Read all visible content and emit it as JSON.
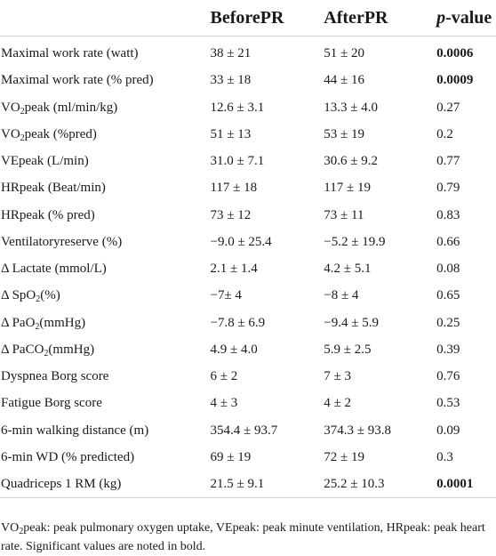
{
  "table": {
    "headers": {
      "variable": "",
      "before": "BeforePR",
      "after": "AfterPR",
      "p_italic": "p",
      "p_rest": "-value"
    },
    "rows": [
      {
        "pre": "Maximal work rate (watt)",
        "before": "38 ± 21",
        "after": "51 ± 20",
        "p": "0.0006",
        "bold": true
      },
      {
        "pre": "Maximal work rate (% pred)",
        "before": "33 ± 18",
        "after": "44 ± 16",
        "p": "0.0009",
        "bold": true
      },
      {
        "pre": "VO",
        "sub": "2",
        "post": "peak (ml/min/kg)",
        "before": "12.6 ± 3.1",
        "after": "13.3 ± 4.0",
        "p": "0.27",
        "bold": false
      },
      {
        "pre": "VO",
        "sub": "2",
        "post": "peak (%pred)",
        "before": "51 ± 13",
        "after": "53 ± 19",
        "p": "0.2",
        "bold": false
      },
      {
        "pre": "VEpeak (L/min)",
        "before": "31.0 ± 7.1",
        "after": "30.6 ± 9.2",
        "p": "0.77",
        "bold": false
      },
      {
        "pre": "HRpeak (Beat/min)",
        "before": "117 ± 18",
        "after": "117 ± 19",
        "p": "0.79",
        "bold": false
      },
      {
        "pre": "HRpeak (% pred)",
        "before": "73 ± 12",
        "after": "73 ± 11",
        "p": "0.83",
        "bold": false
      },
      {
        "pre": "Ventilatoryreserve (%)",
        "before": "−9.0 ± 25.4",
        "after": "−5.2 ± 19.9",
        "p": "0.66",
        "bold": false
      },
      {
        "pre": "Δ Lactate (mmol/L)",
        "before": "2.1 ± 1.4",
        "after": "4.2 ± 5.1",
        "p": "0.08",
        "bold": false
      },
      {
        "pre": "Δ SpO",
        "sub": "2",
        "post": "(%)",
        "before": "−7± 4",
        "after": "−8 ± 4",
        "p": "0.65",
        "bold": false
      },
      {
        "pre": "Δ PaO",
        "sub": "2",
        "post": "(mmHg)",
        "before": "−7.8 ± 6.9",
        "after": "−9.4 ± 5.9",
        "p": "0.25",
        "bold": false
      },
      {
        "pre": "Δ PaCO",
        "sub": "2",
        "post": "(mmHg)",
        "before": "4.9 ± 4.0",
        "after": "5.9 ± 2.5",
        "p": "0.39",
        "bold": false
      },
      {
        "pre": "Dyspnea Borg score",
        "before": "6 ± 2",
        "after": "7 ± 3",
        "p": "0.76",
        "bold": false
      },
      {
        "pre": "Fatigue Borg score",
        "before": "4 ± 3",
        "after": "4 ± 2",
        "p": "0.53",
        "bold": false
      },
      {
        "pre": "6-min walking distance (m)",
        "before": "354.4 ± 93.7",
        "after": "374.3 ± 93.8",
        "p": "0.09",
        "bold": false
      },
      {
        "pre": "6-min WD (% predicted)",
        "before": "69 ± 19",
        "after": "72 ± 19",
        "p": "0.3",
        "bold": false
      },
      {
        "pre": "Quadriceps 1 RM (kg)",
        "before": "21.5 ± 9.1",
        "after": "25.2 ± 10.3",
        "p": "0.0001",
        "bold": true
      }
    ]
  },
  "footnote": {
    "pre": "VO",
    "sub": "2",
    "post": "peak: peak pulmonary oxygen uptake, VEpeak: peak minute ventilation, HRpeak: peak heart rate. Significant values are noted in bold."
  }
}
